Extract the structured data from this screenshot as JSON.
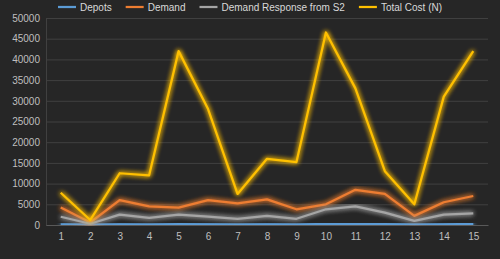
{
  "chart_data": {
    "type": "line",
    "categories": [
      "1",
      "2",
      "3",
      "4",
      "5",
      "6",
      "7",
      "8",
      "9",
      "10",
      "11",
      "12",
      "13",
      "14",
      "15"
    ],
    "series": [
      {
        "name": "Depots",
        "color": "#5b9bd5",
        "values": [
          150,
          50,
          150,
          120,
          200,
          150,
          100,
          150,
          120,
          250,
          300,
          200,
          80,
          180,
          250
        ]
      },
      {
        "name": "Demand",
        "color": "#ed7d31",
        "values": [
          4200,
          600,
          6000,
          4500,
          4200,
          6000,
          5200,
          6200,
          3800,
          5000,
          8500,
          7500,
          2200,
          5500,
          7000
        ]
      },
      {
        "name": "Demand Response from S2",
        "color": "#a5a5a5",
        "values": [
          2000,
          300,
          2500,
          1700,
          2500,
          2000,
          1500,
          2200,
          1500,
          3800,
          4500,
          3000,
          1000,
          2500,
          2800
        ]
      },
      {
        "name": "Total Cost (N)",
        "color": "#ffc000",
        "values": [
          7800,
          1200,
          12500,
          12000,
          42000,
          28000,
          7500,
          16000,
          15200,
          46500,
          33000,
          13000,
          5000,
          31000,
          42000
        ]
      }
    ],
    "ylim": [
      0,
      50000
    ],
    "yticks": [
      0,
      5000,
      10000,
      15000,
      20000,
      25000,
      30000,
      35000,
      40000,
      45000,
      50000
    ],
    "grid": true,
    "legend": "top"
  }
}
